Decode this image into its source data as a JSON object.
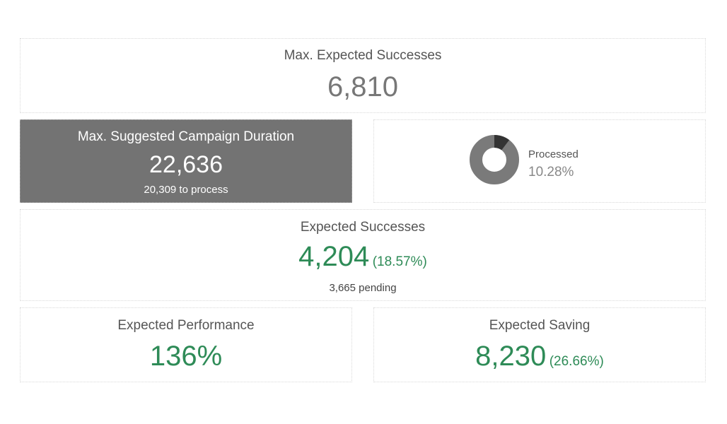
{
  "max_expected_successes": {
    "title": "Max. Expected Successes",
    "value": "6,810"
  },
  "campaign_duration": {
    "title": "Max. Suggested Campaign Duration",
    "value": "22,636",
    "sub": "20,309 to process"
  },
  "processed": {
    "label": "Processed",
    "value": "10.28%",
    "fraction": 0.1028,
    "colors": {
      "done": "#333333",
      "remaining": "#7a7a7a"
    }
  },
  "expected_successes": {
    "title": "Expected Successes",
    "value": "4,204",
    "percent": "(18.57%)",
    "sub": "3,665 pending"
  },
  "expected_performance": {
    "title": "Expected Performance",
    "value": "136%"
  },
  "expected_saving": {
    "title": "Expected Saving",
    "value": "8,230",
    "percent": "(26.66%)"
  },
  "colors": {
    "accent_green": "#2e8b57",
    "highlight_card": "#737373"
  }
}
